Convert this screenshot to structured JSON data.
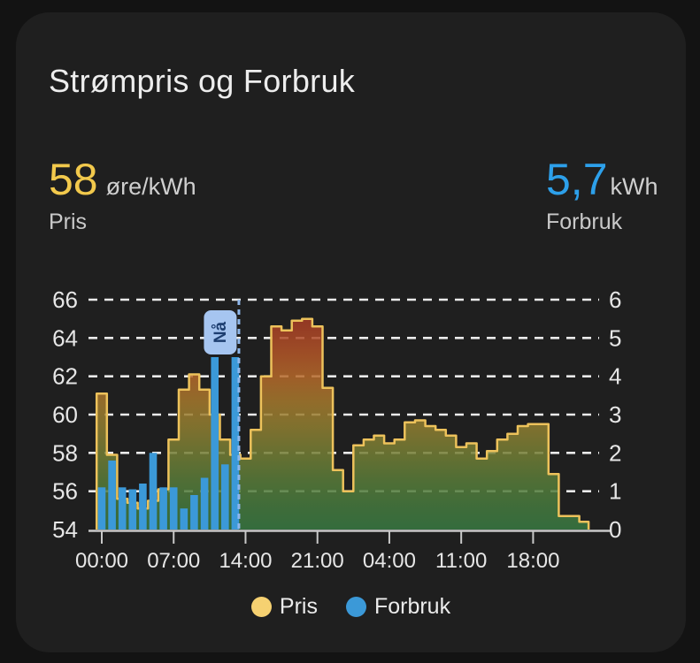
{
  "card": {
    "title": "Strømpris og Forbruk"
  },
  "stats": {
    "price": {
      "value": "58",
      "unit": "øre/kWh",
      "label": "Pris",
      "color": "#f2c94c"
    },
    "consumption": {
      "value": "5,7",
      "unit": "kWh",
      "label": "Forbruk",
      "color": "#2da0ea"
    }
  },
  "legend": [
    {
      "label": "Pris",
      "color": "#f6d171"
    },
    {
      "label": "Forbruk",
      "color": "#3b99d8"
    }
  ],
  "now_marker": {
    "label": "Nå",
    "hour": 13.35,
    "line_color": "#8fb7ea",
    "badge_bg": "#a6c5f0",
    "badge_text_color": "#1d3e70"
  },
  "chart_data": {
    "type": "combo",
    "title": "Strømpris og Forbruk",
    "x_tick_labels": [
      "00:00",
      "07:00",
      "14:00",
      "21:00",
      "04:00",
      "11:00",
      "18:00"
    ],
    "x_tick_hours": [
      0,
      7,
      14,
      21,
      28,
      35,
      42
    ],
    "hours_shown": 47.4,
    "grid": "dashed-horizontal",
    "left_axis": {
      "unit": "øre/kWh",
      "min": 54,
      "max": 66,
      "ticks": [
        66,
        64,
        62,
        60,
        58,
        56,
        54
      ]
    },
    "right_axis": {
      "unit": "kWh",
      "min": 0,
      "max": 6,
      "ticks": [
        6,
        5,
        4,
        3,
        2,
        1,
        0
      ]
    },
    "series": [
      {
        "name": "Pris",
        "type": "step-area",
        "axis": "left",
        "line_color": "#edc25b",
        "values": [
          61.1,
          57.9,
          55.6,
          55.4,
          55.1,
          55.5,
          56.1,
          58.7,
          61.3,
          62.1,
          61.3,
          60.0,
          58.7,
          57.9,
          57.7,
          59.2,
          62.0,
          64.6,
          64.4,
          64.9,
          65.0,
          64.6,
          61.4,
          57.1,
          56.0,
          58.4,
          58.7,
          58.9,
          58.5,
          58.7,
          59.6,
          59.7,
          59.4,
          59.2,
          58.9,
          58.3,
          58.5,
          57.7,
          58.1,
          58.7,
          59.0,
          59.4,
          59.5,
          59.5,
          56.9,
          54.7,
          54.7,
          54.4
        ]
      },
      {
        "name": "Forbruk",
        "type": "bar",
        "axis": "right",
        "color": "#3b99d8",
        "values": [
          1.1,
          1.8,
          1.1,
          1.05,
          1.2,
          2.0,
          1.1,
          1.1,
          0.55,
          0.9,
          1.35,
          4.5,
          1.7,
          4.5
        ]
      }
    ],
    "fill_gradient": [
      [
        "0%",
        "#a23722"
      ],
      [
        "10%",
        "#a83e25"
      ],
      [
        "22%",
        "#b35327"
      ],
      [
        "33%",
        "#b6682a"
      ],
      [
        "45%",
        "#a57a2d"
      ],
      [
        "55%",
        "#917f31"
      ],
      [
        "67%",
        "#747e35"
      ],
      [
        "78%",
        "#5a7c39"
      ],
      [
        "90%",
        "#457a3e"
      ],
      [
        "100%",
        "#387942"
      ]
    ]
  }
}
